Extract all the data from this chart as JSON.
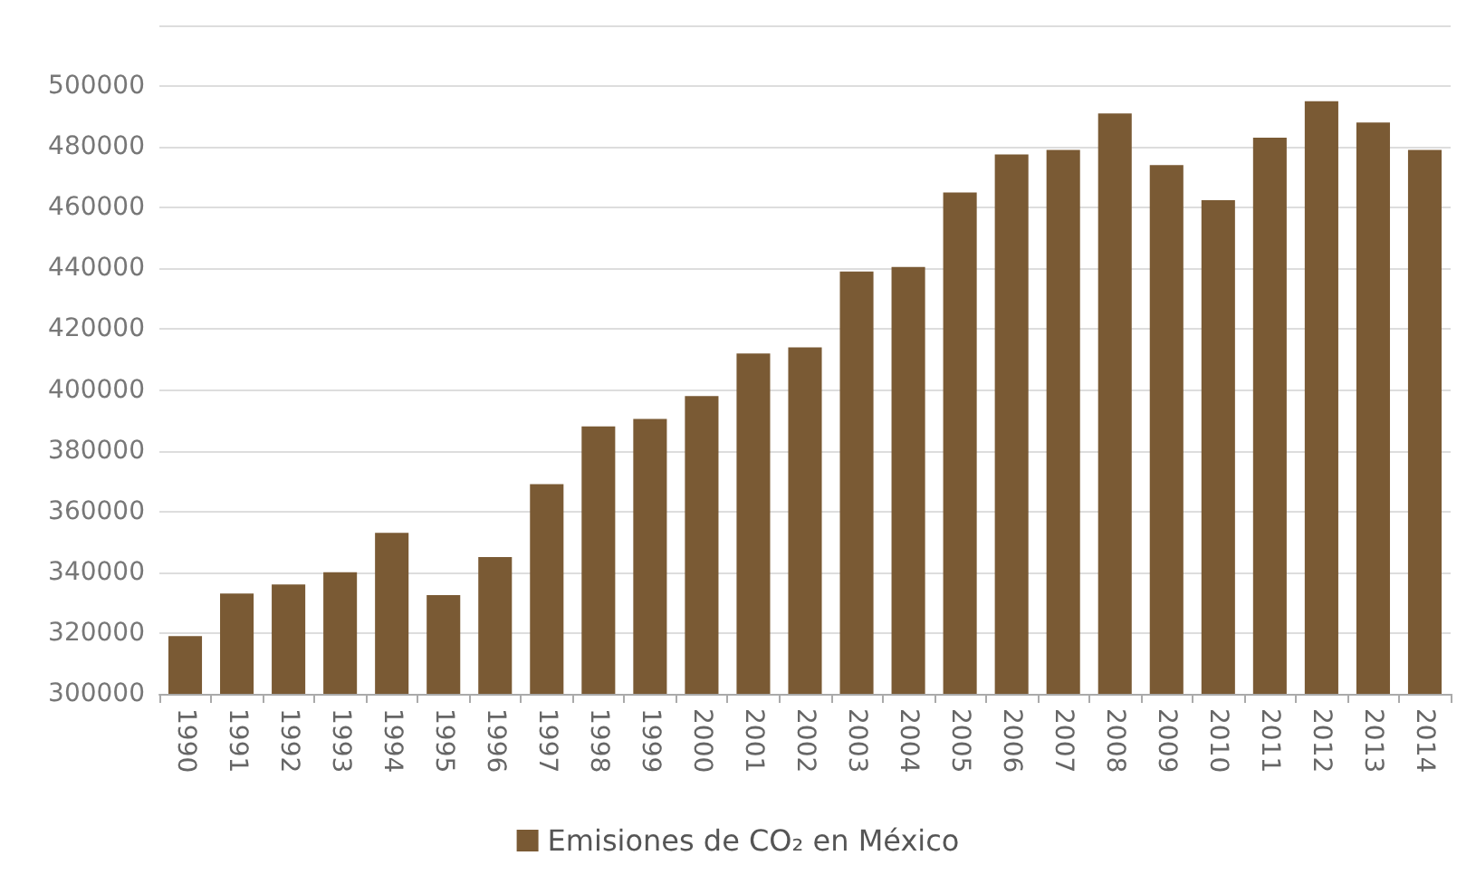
{
  "chart_data": {
    "type": "bar",
    "categories": [
      "1990",
      "1991",
      "1992",
      "1993",
      "1994",
      "1995",
      "1996",
      "1997",
      "1998",
      "1999",
      "2000",
      "2001",
      "2002",
      "2003",
      "2004",
      "2005",
      "2006",
      "2007",
      "2008",
      "2009",
      "2010",
      "2011",
      "2012",
      "2013",
      "2014"
    ],
    "series": [
      {
        "name": "Emisiones de CO₂ en México",
        "color": "#7a5a34",
        "values": [
          319000,
          333000,
          336000,
          340000,
          353000,
          332500,
          345000,
          369000,
          388000,
          390500,
          398000,
          412000,
          414000,
          439000,
          440500,
          465000,
          477500,
          479000,
          491000,
          474000,
          462500,
          483000,
          495000,
          488000,
          479000
        ]
      }
    ],
    "ylim": [
      300000,
      520000
    ],
    "yticks": [
      300000,
      320000,
      340000,
      360000,
      380000,
      400000,
      420000,
      440000,
      460000,
      480000,
      500000,
      {
        "value": 520000,
        "label": null
      }
    ],
    "grid": "y",
    "legend": "bottom"
  }
}
